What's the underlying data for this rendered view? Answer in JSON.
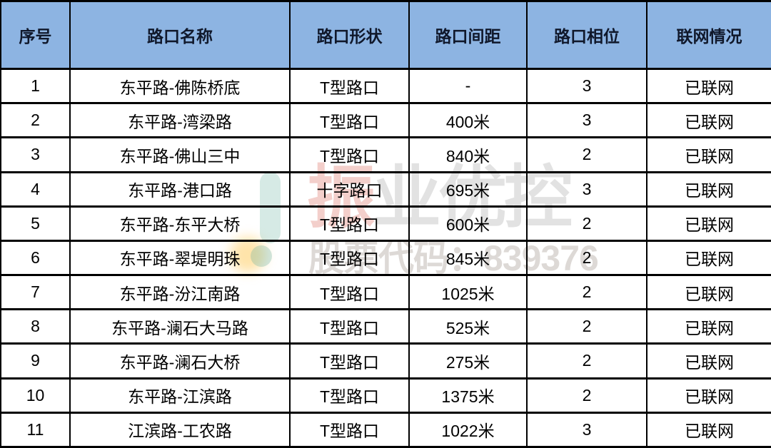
{
  "table": {
    "columns": [
      "序号",
      "路口名称",
      "路口形状",
      "路口间距",
      "路口相位",
      "联网情况"
    ],
    "rows": [
      [
        "1",
        "东平路-佛陈桥底",
        "T型路口",
        "-",
        "3",
        "已联网"
      ],
      [
        "2",
        "东平路-湾梁路",
        "T型路口",
        "400米",
        "3",
        "已联网"
      ],
      [
        "3",
        "东平路-佛山三中",
        "T型路口",
        "840米",
        "2",
        "已联网"
      ],
      [
        "4",
        "东平路-港口路",
        "十字路口",
        "695米",
        "3",
        "已联网"
      ],
      [
        "5",
        "东平路-东平大桥",
        "T型路口",
        "600米",
        "2",
        "已联网"
      ],
      [
        "6",
        "东平路-翠堤明珠",
        "T型路口",
        "845米",
        "2",
        "已联网"
      ],
      [
        "7",
        "东平路-汾江南路",
        "T型路口",
        "1025米",
        "2",
        "已联网"
      ],
      [
        "8",
        "东平路-澜石大马路",
        "T型路口",
        "525米",
        "2",
        "已联网"
      ],
      [
        "9",
        "东平路-澜石大桥",
        "T型路口",
        "275米",
        "2",
        "已联网"
      ],
      [
        "10",
        "东平路-江滨路",
        "T型路口",
        "1375米",
        "2",
        "已联网"
      ],
      [
        "11",
        "江滨路-工农路",
        "T型路口",
        "1022米",
        "3",
        "已联网"
      ]
    ]
  },
  "watermark": {
    "brand_first": "振",
    "brand_rest": "业优控",
    "stock_text": "股票代码：839376"
  },
  "colors": {
    "header_bg": "#8DB4E2",
    "header_text": "#10182b",
    "border": "#000000",
    "watermark_teal": "#6CB2A0",
    "watermark_yellow": "#FFC442",
    "watermark_red": "#D66052",
    "watermark_gray": "#7D7D7D"
  }
}
